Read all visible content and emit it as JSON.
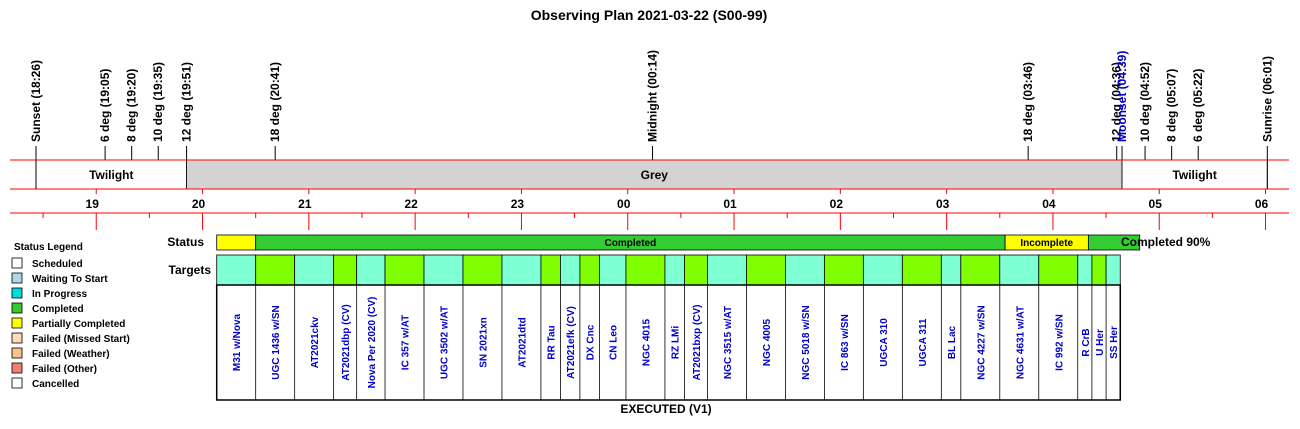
{
  "title": "Observing Plan 2021-03-22 (S00-99)",
  "events": [
    {
      "label": "Sunset (18:26)",
      "time": "18:26",
      "color": "#000000"
    },
    {
      "label": "6 deg (19:05)",
      "time": "19:05",
      "color": "#000000"
    },
    {
      "label": "8 deg (19:20)",
      "time": "19:20",
      "color": "#000000"
    },
    {
      "label": "10 deg (19:35)",
      "time": "19:35",
      "color": "#000000"
    },
    {
      "label": "12 deg (19:51)",
      "time": "19:51",
      "color": "#000000"
    },
    {
      "label": "18 deg (20:41)",
      "time": "20:41",
      "color": "#000000"
    },
    {
      "label": "Midnight (00:14)",
      "time": "00:14",
      "color": "#000000"
    },
    {
      "label": "18 deg (03:46)",
      "time": "03:46",
      "color": "#000000"
    },
    {
      "label": "12 deg (04:36)",
      "time": "04:36",
      "color": "#000000"
    },
    {
      "label": "Moonset (04:39)",
      "time": "04:39",
      "color": "#0000cc"
    },
    {
      "label": "10 deg (04:52)",
      "time": "04:52",
      "color": "#000000"
    },
    {
      "label": "8 deg (05:07)",
      "time": "05:07",
      "color": "#000000"
    },
    {
      "label": "6 deg (05:22)",
      "time": "05:22",
      "color": "#000000"
    },
    {
      "label": "Sunrise (06:01)",
      "time": "06:01",
      "color": "#000000"
    }
  ],
  "sky_bands": [
    {
      "label": "Twilight",
      "start": "18:26",
      "end": "19:51",
      "color": "#ffffff"
    },
    {
      "label": "Grey",
      "start": "19:51",
      "end": "04:39",
      "color": "#d3d3d3"
    },
    {
      "label": "Twilight",
      "start": "04:39",
      "end": "06:01",
      "color": "#ffffff"
    }
  ],
  "hours": [
    "19",
    "20",
    "21",
    "22",
    "23",
    "00",
    "01",
    "02",
    "03",
    "04",
    "05",
    "06"
  ],
  "status_label": "Status",
  "targets_label": "Targets",
  "status_summary": "Completed 90%",
  "status_segments": [
    {
      "label": "",
      "start": "20:08",
      "end": "20:30",
      "color": "#ffff00"
    },
    {
      "label": "Completed",
      "start": "20:30",
      "end": "03:33",
      "color": "#33cc33"
    },
    {
      "label": "Incomplete",
      "start": "03:33",
      "end": "04:20",
      "color": "#ffff00"
    },
    {
      "label": "",
      "start": "04:20",
      "end": "04:49",
      "color": "#33cc33"
    }
  ],
  "targets": [
    {
      "name": "M31 w/Nova",
      "start": "20:08",
      "end": "20:30",
      "color": "#7fffd4"
    },
    {
      "name": "UGC 1436 w/SN",
      "start": "20:30",
      "end": "20:52",
      "color": "#80ff00"
    },
    {
      "name": "AT2021ckv",
      "start": "20:52",
      "end": "21:14",
      "color": "#7fffd4"
    },
    {
      "name": "AT2021dbp (CV)",
      "start": "21:14",
      "end": "21:27",
      "color": "#80ff00"
    },
    {
      "name": "Nova Per 2020 (CV)",
      "start": "21:27",
      "end": "21:43",
      "color": "#7fffd4"
    },
    {
      "name": "IC 357 w/AT",
      "start": "21:43",
      "end": "22:05",
      "color": "#80ff00"
    },
    {
      "name": "UGC 3502 w/AT",
      "start": "22:05",
      "end": "22:27",
      "color": "#7fffd4"
    },
    {
      "name": "SN 2021xn",
      "start": "22:27",
      "end": "22:49",
      "color": "#80ff00"
    },
    {
      "name": "AT2021dtd",
      "start": "22:49",
      "end": "23:11",
      "color": "#7fffd4"
    },
    {
      "name": "RR Tau",
      "start": "23:11",
      "end": "23:22",
      "color": "#80ff00"
    },
    {
      "name": "AT2021efk (CV)",
      "start": "23:22",
      "end": "23:33",
      "color": "#7fffd4"
    },
    {
      "name": "DX Cnc",
      "start": "23:33",
      "end": "23:44",
      "color": "#80ff00"
    },
    {
      "name": "CN Leo",
      "start": "23:44",
      "end": "23:59",
      "color": "#7fffd4"
    },
    {
      "name": "NGC 4015",
      "start": "23:59",
      "end": "00:21",
      "color": "#80ff00"
    },
    {
      "name": "RZ LMi",
      "start": "00:21",
      "end": "00:32",
      "color": "#7fffd4"
    },
    {
      "name": "AT2021bxp (CV)",
      "start": "00:32",
      "end": "00:45",
      "color": "#80ff00"
    },
    {
      "name": "NGC 3515 w/AT",
      "start": "00:45",
      "end": "01:07",
      "color": "#7fffd4"
    },
    {
      "name": "NGC 4005",
      "start": "01:07",
      "end": "01:29",
      "color": "#80ff00"
    },
    {
      "name": "NGC 5018 w/SN",
      "start": "01:29",
      "end": "01:51",
      "color": "#7fffd4"
    },
    {
      "name": "IC 863 w/SN",
      "start": "01:51",
      "end": "02:13",
      "color": "#80ff00"
    },
    {
      "name": "UGCA 310",
      "start": "02:13",
      "end": "02:35",
      "color": "#7fffd4"
    },
    {
      "name": "UGCA 311",
      "start": "02:35",
      "end": "02:57",
      "color": "#80ff00"
    },
    {
      "name": "BL Lac",
      "start": "02:57",
      "end": "03:08",
      "color": "#7fffd4"
    },
    {
      "name": "NGC 4227 w/SN",
      "start": "03:08",
      "end": "03:30",
      "color": "#80ff00"
    },
    {
      "name": "NGC 4631 w/AT",
      "start": "03:30",
      "end": "03:52",
      "color": "#7fffd4"
    },
    {
      "name": "IC 992 w/SN",
      "start": "03:52",
      "end": "04:14",
      "color": "#80ff00"
    },
    {
      "name": "R CrB",
      "start": "04:14",
      "end": "04:22",
      "color": "#7fffd4"
    },
    {
      "name": "U Her",
      "start": "04:22",
      "end": "04:30",
      "color": "#80ff00"
    },
    {
      "name": "SS Her",
      "start": "04:30",
      "end": "04:38",
      "color": "#7fffd4"
    }
  ],
  "footer": "EXECUTED (V1)",
  "legend": {
    "title": "Status Legend",
    "items": [
      {
        "label": "Scheduled",
        "color": "#ffffff"
      },
      {
        "label": "Waiting To Start",
        "color": "#add8e6"
      },
      {
        "label": "In Progress",
        "color": "#00dddd"
      },
      {
        "label": "Completed",
        "color": "#33cc33"
      },
      {
        "label": "Partially Completed",
        "color": "#ffff00"
      },
      {
        "label": "Failed (Missed Start)",
        "color": "#ffdab9"
      },
      {
        "label": "Failed (Weather)",
        "color": "#f4c48a"
      },
      {
        "label": "Failed (Other)",
        "color": "#f08070"
      },
      {
        "label": "Cancelled",
        "color": "#ffffff"
      }
    ]
  },
  "colors": {
    "grid_red": "#ff0000",
    "label_blue": "#0000cc"
  }
}
